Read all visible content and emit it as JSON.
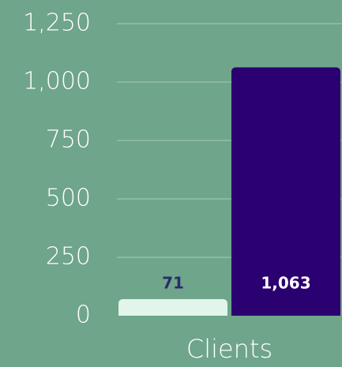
{
  "chart_data": {
    "type": "bar",
    "categories": [
      "Clients"
    ],
    "series": [
      {
        "color": "#e1f5eb",
        "values": [
          71
        ]
      },
      {
        "color": "#2b0070",
        "values": [
          1063
        ],
        "value_labels": [
          "1,063"
        ]
      }
    ],
    "ylim": [
      0,
      1250
    ],
    "yticks": [
      0,
      250,
      500,
      750,
      {
        "value": 1000,
        "label": "1,000"
      },
      {
        "value": 1250,
        "label": "1,250"
      }
    ],
    "grid": true
  }
}
